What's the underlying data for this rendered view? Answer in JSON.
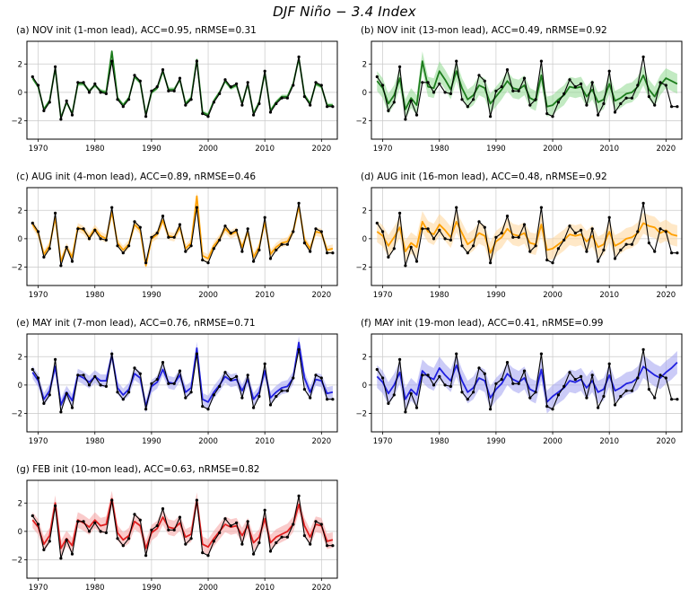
{
  "figure_title": "DJF Niño − 3.4 Index",
  "axes": {
    "xlim": [
      1968,
      2022.8
    ],
    "ylim": [
      -3.3,
      3.6
    ],
    "xticks": [
      1970,
      1980,
      1990,
      2000,
      2010,
      2020
    ],
    "yticks": [
      -2,
      0,
      2
    ],
    "ytick_labels": [
      "−2",
      "0",
      "2"
    ],
    "grid": true
  },
  "observations": {
    "label": "observations",
    "color": "#000000",
    "years_start": 1969,
    "values": [
      1.1,
      0.5,
      -1.3,
      -0.7,
      1.8,
      -1.9,
      -0.6,
      -1.6,
      0.7,
      0.7,
      0.0,
      0.6,
      0.0,
      -0.1,
      2.2,
      -0.5,
      -1.0,
      -0.5,
      1.2,
      0.8,
      -1.7,
      0.1,
      0.4,
      1.6,
      0.1,
      0.1,
      1.0,
      -0.9,
      -0.5,
      2.2,
      -1.5,
      -1.7,
      -0.7,
      -0.1,
      0.9,
      0.4,
      0.6,
      -0.9,
      0.7,
      -1.6,
      -0.8,
      1.5,
      -1.4,
      -0.8,
      -0.4,
      -0.4,
      0.5,
      2.5,
      -0.3,
      -0.9,
      0.7,
      0.5,
      -1.0,
      -1.0
    ]
  },
  "chart_data": [
    {
      "type": "line",
      "panel": "a",
      "title": "(a) NOV init (1-mon lead), ACC=0.95, nRMSE=0.31",
      "init_month": "NOV",
      "lead_months": 1,
      "acc": 0.95,
      "nrmse": 0.31,
      "line_color": "#1c7c1c",
      "band_color": "#8fd88f",
      "band_halfwidth": 0.15,
      "pred": [
        1.0,
        0.4,
        -1.2,
        -0.6,
        1.7,
        -1.8,
        -0.7,
        -1.5,
        0.6,
        0.6,
        0.1,
        0.5,
        0.1,
        0.0,
        2.9,
        -0.4,
        -0.9,
        -0.4,
        1.1,
        0.7,
        -1.6,
        0.0,
        0.3,
        1.5,
        0.2,
        0.2,
        0.9,
        -0.8,
        -0.4,
        2.3,
        -1.4,
        -1.6,
        -0.6,
        0.0,
        0.8,
        0.3,
        0.5,
        -0.8,
        0.6,
        -1.5,
        -0.7,
        1.4,
        -1.3,
        -0.7,
        -0.3,
        -0.3,
        0.6,
        2.4,
        -0.2,
        -0.8,
        0.6,
        0.4,
        -0.9,
        -0.9
      ]
    },
    {
      "type": "line",
      "panel": "b",
      "title": "(b) NOV init (13-mon lead), ACC=0.49, nRMSE=0.92",
      "init_month": "NOV",
      "lead_months": 13,
      "acc": 0.49,
      "nrmse": 0.92,
      "line_color": "#1c7c1c",
      "band_color": "#8fd88f",
      "band_halfwidth": 0.7,
      "pred": [
        0.8,
        0.3,
        -0.8,
        -0.2,
        1.0,
        -1.2,
        -0.4,
        -0.9,
        2.2,
        0.4,
        0.3,
        1.5,
        0.9,
        0.2,
        1.5,
        0.3,
        -0.5,
        -0.2,
        0.5,
        0.3,
        -0.8,
        -0.3,
        0.2,
        0.8,
        0.3,
        0.2,
        0.5,
        -0.4,
        -0.6,
        1.2,
        -1.0,
        -0.9,
        -0.5,
        -0.2,
        0.4,
        0.3,
        0.4,
        -0.3,
        0.2,
        -0.7,
        -0.5,
        0.6,
        -0.6,
        -0.4,
        -0.1,
        0.0,
        0.4,
        1.2,
        0.2,
        -0.3,
        0.5,
        1.0,
        0.8,
        0.6
      ]
    },
    {
      "type": "line",
      "panel": "c",
      "title": "(c) AUG init (4-mon lead), ACC=0.89, nRMSE=0.46",
      "init_month": "AUG",
      "lead_months": 4,
      "acc": 0.89,
      "nrmse": 0.46,
      "line_color": "#ffa000",
      "band_color": "#ffd699",
      "band_halfwidth": 0.3,
      "pred": [
        1.0,
        0.4,
        -1.1,
        -0.5,
        1.5,
        -1.6,
        -0.6,
        -1.3,
        0.8,
        0.6,
        0.1,
        0.7,
        0.2,
        0.0,
        1.9,
        -0.3,
        -0.8,
        -0.4,
        1.0,
        0.6,
        -1.9,
        0.0,
        0.3,
        1.3,
        0.2,
        0.1,
        0.8,
        -0.7,
        -0.3,
        3.0,
        -1.2,
        -1.4,
        -0.5,
        0.0,
        0.7,
        0.3,
        0.5,
        -0.6,
        0.5,
        -1.3,
        -0.6,
        1.2,
        -1.1,
        -0.6,
        -0.3,
        -0.2,
        0.5,
        2.3,
        -0.1,
        -0.7,
        0.5,
        0.4,
        -0.8,
        -0.7
      ]
    },
    {
      "type": "line",
      "panel": "d",
      "title": "(d) AUG init (16-mon lead), ACC=0.48, nRMSE=0.92",
      "init_month": "AUG",
      "lead_months": 16,
      "acc": 0.48,
      "nrmse": 0.92,
      "line_color": "#ffa000",
      "band_color": "#ffd699",
      "band_halfwidth": 0.75,
      "pred": [
        0.5,
        0.2,
        -0.5,
        0.1,
        0.8,
        -0.9,
        -0.3,
        -0.6,
        1.2,
        0.5,
        0.3,
        1.0,
        0.6,
        0.1,
        1.2,
        0.4,
        -0.4,
        -0.1,
        0.4,
        0.2,
        -1.0,
        -0.2,
        0.1,
        0.7,
        0.3,
        0.2,
        0.4,
        -0.3,
        -0.4,
        1.0,
        -0.8,
        -0.7,
        -0.4,
        -0.1,
        0.3,
        0.2,
        0.3,
        -0.2,
        0.2,
        -0.6,
        -0.4,
        0.5,
        -0.5,
        -0.3,
        0.0,
        0.1,
        0.4,
        1.1,
        0.9,
        0.8,
        0.4,
        0.6,
        0.3,
        0.2
      ]
    },
    {
      "type": "line",
      "panel": "e",
      "title": "(e) MAY init (7-mon lead), ACC=0.76, nRMSE=0.71",
      "init_month": "MAY",
      "lead_months": 7,
      "acc": 0.76,
      "nrmse": 0.71,
      "line_color": "#2020e0",
      "band_color": "#a0a0f0",
      "band_halfwidth": 0.45,
      "pred": [
        0.9,
        0.3,
        -1.0,
        -0.4,
        1.3,
        -1.4,
        -0.5,
        -1.1,
        0.7,
        0.5,
        0.2,
        0.6,
        0.3,
        0.3,
        2.1,
        -0.2,
        -0.7,
        -0.3,
        0.8,
        0.5,
        -1.5,
        -0.1,
        0.2,
        1.1,
        0.2,
        0.1,
        0.7,
        -0.5,
        -0.2,
        2.6,
        -1.0,
        -1.2,
        -0.5,
        0.0,
        0.6,
        0.3,
        0.4,
        -0.4,
        0.4,
        -1.0,
        -0.5,
        1.0,
        -0.9,
        -0.5,
        -0.2,
        -0.1,
        0.5,
        3.0,
        0.5,
        -0.5,
        0.4,
        0.3,
        -0.6,
        -0.5
      ]
    },
    {
      "type": "line",
      "panel": "f",
      "title": "(f) MAY init (19-mon lead), ACC=0.41, nRMSE=0.99",
      "init_month": "MAY",
      "lead_months": 19,
      "acc": 0.41,
      "nrmse": 0.99,
      "line_color": "#2020e0",
      "band_color": "#a0a0f0",
      "band_halfwidth": 0.8,
      "pred": [
        0.6,
        0.2,
        -0.6,
        0.0,
        0.9,
        -1.0,
        -0.3,
        -0.7,
        1.0,
        0.6,
        0.4,
        1.2,
        0.7,
        0.3,
        1.4,
        0.3,
        -0.5,
        -0.2,
        0.5,
        0.3,
        -0.9,
        -0.3,
        0.1,
        0.8,
        0.4,
        0.2,
        0.5,
        -0.3,
        -0.5,
        1.1,
        -1.2,
        -0.8,
        -0.5,
        -0.2,
        0.3,
        0.2,
        0.4,
        -0.2,
        0.3,
        -0.5,
        -0.3,
        0.7,
        -0.4,
        -0.2,
        0.1,
        0.2,
        0.5,
        1.3,
        1.0,
        0.7,
        0.5,
        0.9,
        1.2,
        1.6
      ]
    },
    {
      "type": "line",
      "panel": "g",
      "title": "(g) FEB init (10-mon lead), ACC=0.63, nRMSE=0.82",
      "init_month": "FEB",
      "lead_months": 10,
      "acc": 0.63,
      "nrmse": 0.82,
      "line_color": "#e01f1f",
      "band_color": "#f5a0a0",
      "band_halfwidth": 0.55,
      "pred": [
        0.8,
        0.3,
        -0.9,
        -0.3,
        2.0,
        -1.2,
        -0.5,
        -1.0,
        0.8,
        0.6,
        0.3,
        0.8,
        0.4,
        0.5,
        2.3,
        -0.1,
        -0.6,
        -0.3,
        0.7,
        0.4,
        -1.2,
        -0.1,
        0.2,
        1.0,
        0.3,
        0.2,
        0.6,
        -0.4,
        -0.2,
        2.2,
        -0.9,
        -1.1,
        -0.5,
        0.0,
        0.5,
        0.3,
        0.4,
        -0.3,
        0.4,
        -0.8,
        -0.4,
        0.9,
        -0.8,
        -0.4,
        -0.2,
        0.0,
        0.5,
        1.9,
        0.4,
        -0.4,
        0.5,
        0.4,
        -0.7,
        -0.6
      ]
    }
  ]
}
